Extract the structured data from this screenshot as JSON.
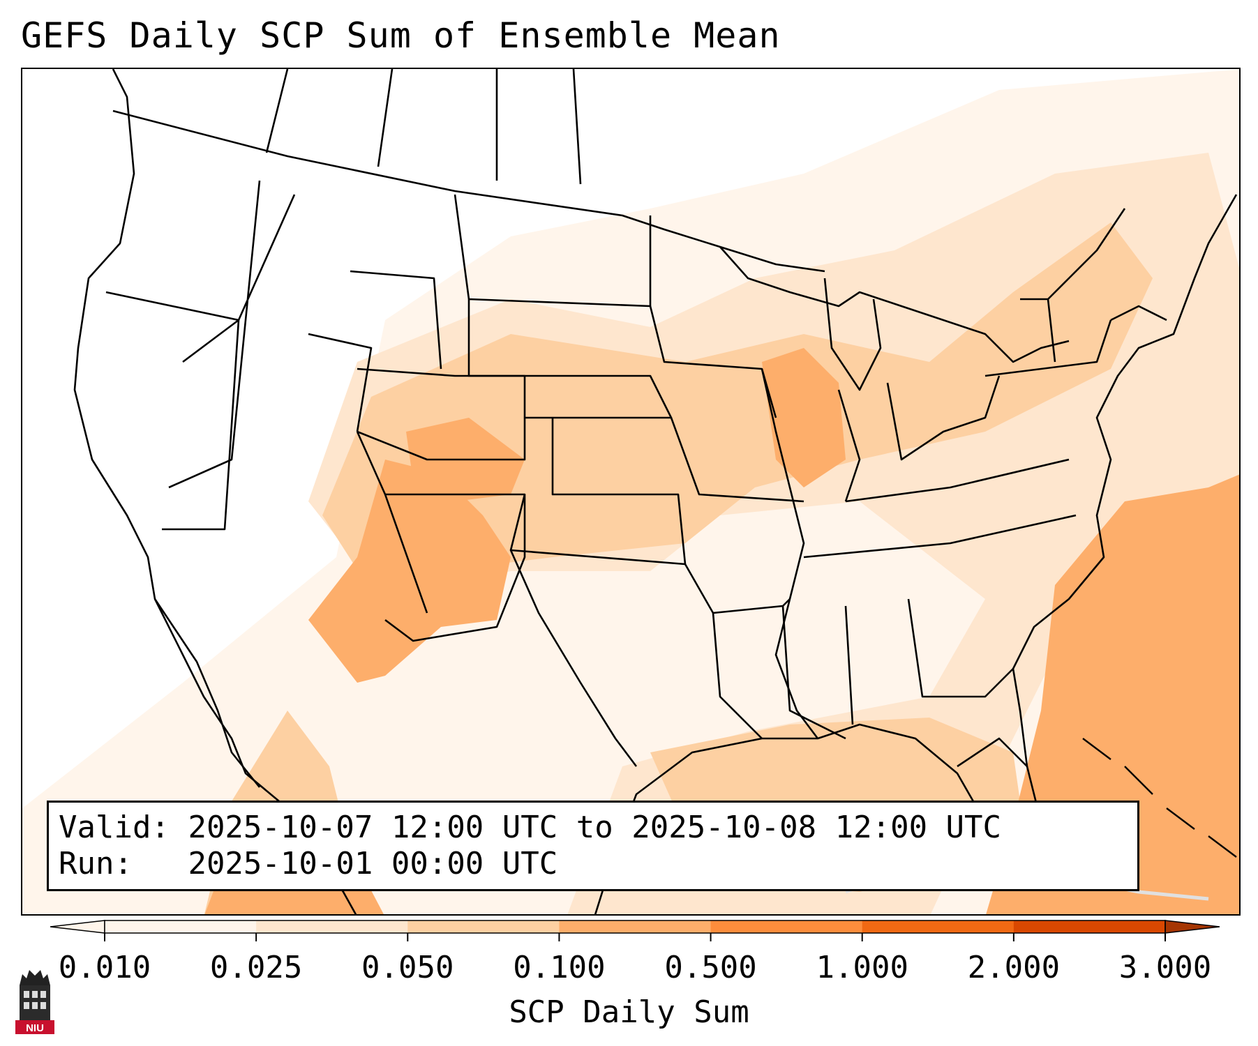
{
  "title": "GEFS Daily SCP Sum of Ensemble Mean",
  "info": {
    "valid_label": "Valid:",
    "valid_value": "2025-10-07 12:00 UTC to 2025-10-08 12:00 UTC",
    "run_label": "Run:",
    "run_value": "2025-10-01 00:00 UTC"
  },
  "colorbar": {
    "label": "SCP Daily Sum",
    "ticks": [
      "0.010",
      "0.025",
      "0.050",
      "0.100",
      "0.500",
      "1.000",
      "2.000",
      "3.000"
    ],
    "colors": [
      "#fff5eb",
      "#fee6ce",
      "#fdd0a2",
      "#fdae6b",
      "#fd8d3c",
      "#f16913",
      "#d94801"
    ],
    "extend": "both"
  },
  "legend_colors": {
    "level_1": "#fff5eb",
    "level_2": "#fee6ce",
    "level_3": "#fdd0a2",
    "level_4": "#fdae6b"
  },
  "logo": {
    "text": "NIU",
    "icon": "niu-tower-logo-icon",
    "color": "#c8102e"
  }
}
